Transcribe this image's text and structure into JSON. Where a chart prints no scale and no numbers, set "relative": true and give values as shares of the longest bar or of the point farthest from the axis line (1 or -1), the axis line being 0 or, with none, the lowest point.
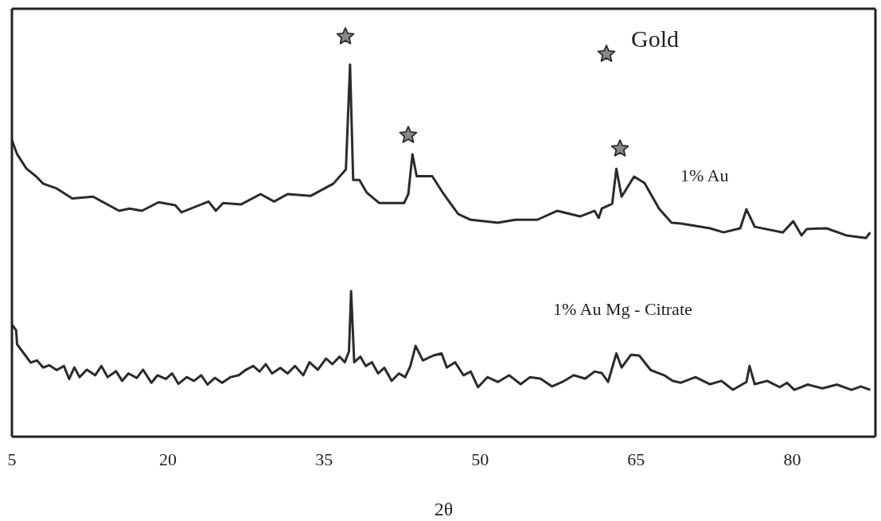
{
  "chart_data": {
    "type": "line",
    "relative": true,
    "xlabel": "2θ",
    "xlim": [
      5,
      88
    ],
    "xticks": [
      5,
      20,
      35,
      50,
      65,
      80
    ],
    "grid": false,
    "marker": "none",
    "line_style": "solid",
    "series": [
      {
        "name": "1% Au",
        "color": "#2b2b2b",
        "x": [
          5.0,
          5.5,
          6.4,
          7.3,
          8.0,
          9.3,
          10.8,
          12.8,
          15.3,
          16.3,
          17.5,
          19.1,
          20.7,
          21.3,
          23.9,
          24.6,
          25.3,
          27.0,
          28.9,
          30.2,
          31.5,
          33.7,
          35.9,
          37.1,
          37.5,
          37.8,
          38.4,
          39.1,
          40.3,
          42.7,
          43.1,
          43.5,
          43.9,
          45.4,
          46.5,
          47.9,
          49.1,
          51.7,
          53.4,
          55.5,
          57.4,
          59.6,
          61.0,
          61.4,
          61.7,
          62.7,
          63.1,
          63.6,
          64.8,
          65.8,
          67.2,
          68.4,
          69.3,
          72.1,
          73.4,
          75.0,
          75.6,
          76.4,
          79.1,
          80.1,
          80.9,
          81.4,
          83.3,
          85.2,
          87.1,
          87.5
        ],
        "values": [
          0.797,
          0.759,
          0.72,
          0.7,
          0.68,
          0.667,
          0.64,
          0.645,
          0.607,
          0.613,
          0.607,
          0.63,
          0.622,
          0.603,
          0.632,
          0.607,
          0.628,
          0.624,
          0.652,
          0.632,
          0.652,
          0.647,
          0.68,
          0.718,
          1.0,
          0.69,
          0.69,
          0.656,
          0.628,
          0.628,
          0.652,
          0.759,
          0.7,
          0.7,
          0.652,
          0.598,
          0.583,
          0.575,
          0.583,
          0.583,
          0.607,
          0.592,
          0.607,
          0.588,
          0.613,
          0.626,
          0.72,
          0.645,
          0.699,
          0.682,
          0.613,
          0.575,
          0.573,
          0.56,
          0.549,
          0.56,
          0.611,
          0.564,
          0.549,
          0.579,
          0.541,
          0.558,
          0.56,
          0.541,
          0.534,
          0.549
        ]
      },
      {
        "name": "1% Au Mg - Citrate",
        "color": "#2b2b2b",
        "x": [
          5.0,
          5.4,
          5.5,
          6.3,
          6.8,
          7.4,
          8.0,
          8.6,
          9.3,
          10.0,
          10.5,
          11.0,
          11.5,
          12.2,
          13.0,
          13.6,
          14.2,
          15.0,
          15.6,
          16.2,
          17.0,
          17.6,
          18.4,
          19.0,
          19.8,
          20.4,
          21.0,
          21.8,
          22.5,
          23.2,
          23.8,
          24.5,
          25.2,
          26.0,
          26.8,
          27.5,
          28.2,
          28.8,
          29.4,
          30.0,
          30.8,
          31.5,
          32.2,
          33.0,
          33.6,
          34.4,
          35.2,
          35.8,
          36.5,
          37.0,
          37.4,
          37.6,
          37.9,
          38.5,
          39.0,
          39.6,
          40.2,
          40.8,
          41.5,
          42.2,
          42.8,
          43.3,
          43.8,
          44.5,
          45.5,
          46.3,
          46.8,
          47.6,
          48.4,
          49.1,
          49.8,
          50.7,
          51.7,
          52.8,
          53.9,
          54.8,
          55.8,
          56.9,
          57.9,
          59.0,
          60.1,
          61.0,
          61.7,
          62.3,
          63.1,
          63.6,
          64.5,
          65.3,
          66.4,
          67.7,
          68.5,
          69.3,
          70.7,
          72.1,
          73.2,
          74.3,
          75.6,
          75.9,
          76.4,
          77.6,
          78.8,
          79.5,
          80.2,
          81.5,
          82.9,
          84.3,
          85.7,
          86.6,
          87.5
        ],
        "values": [
          0.301,
          0.286,
          0.248,
          0.218,
          0.199,
          0.205,
          0.186,
          0.192,
          0.179,
          0.19,
          0.155,
          0.186,
          0.16,
          0.18,
          0.165,
          0.19,
          0.16,
          0.176,
          0.15,
          0.17,
          0.158,
          0.18,
          0.145,
          0.165,
          0.155,
          0.17,
          0.142,
          0.16,
          0.15,
          0.165,
          0.14,
          0.158,
          0.145,
          0.16,
          0.165,
          0.18,
          0.19,
          0.175,
          0.195,
          0.17,
          0.185,
          0.17,
          0.19,
          0.165,
          0.2,
          0.18,
          0.21,
          0.195,
          0.215,
          0.2,
          0.23,
          0.391,
          0.2,
          0.215,
          0.19,
          0.2,
          0.17,
          0.185,
          0.15,
          0.17,
          0.16,
          0.19,
          0.244,
          0.205,
          0.218,
          0.224,
          0.186,
          0.2,
          0.165,
          0.175,
          0.133,
          0.16,
          0.147,
          0.165,
          0.141,
          0.16,
          0.156,
          0.135,
          0.147,
          0.165,
          0.156,
          0.175,
          0.171,
          0.147,
          0.224,
          0.186,
          0.22,
          0.218,
          0.179,
          0.165,
          0.15,
          0.145,
          0.16,
          0.141,
          0.15,
          0.126,
          0.147,
          0.19,
          0.141,
          0.15,
          0.133,
          0.145,
          0.126,
          0.14,
          0.13,
          0.14,
          0.126,
          0.135,
          0.126
        ]
      }
    ],
    "annotations": [
      "Gold"
    ]
  }
}
